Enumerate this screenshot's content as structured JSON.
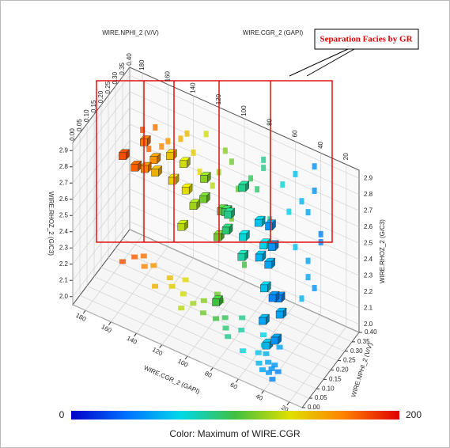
{
  "chart_data": {
    "type": "scatter3d",
    "x_label": "WIRE.CGR_2 (GAPI)",
    "y_label": "WIRE.NPHI_2 (V/V)",
    "z_label": "WIRE.RHOZ_2 (G/C3)",
    "annotation": "Separation Facies by GR",
    "xlim": [
      10,
      190
    ],
    "xticks": [
      20,
      40,
      60,
      80,
      100,
      120,
      140,
      160,
      180
    ],
    "ylim": [
      0,
      0.4
    ],
    "yticks": [
      {
        "value": 0,
        "label": "0.00"
      },
      {
        "value": 0.05,
        "label": "0.05"
      },
      {
        "value": 0.1,
        "label": "0.10"
      },
      {
        "value": 0.15,
        "label": "0.15"
      },
      {
        "value": 0.2,
        "label": "0.20"
      },
      {
        "value": 0.25,
        "label": "0.25"
      },
      {
        "value": 0.3,
        "label": "0.30"
      },
      {
        "value": 0.35,
        "label": "0.35"
      },
      {
        "value": 0.4,
        "label": "0.40"
      }
    ],
    "zlim": [
      1.95,
      2.95
    ],
    "zticks": [
      {
        "value": 2,
        "label": "2.0"
      },
      2.1,
      2.2,
      2.3,
      2.4,
      2.5,
      2.6,
      2.7,
      2.8,
      2.9
    ],
    "grid": true,
    "colorbar": {
      "lim": [
        0,
        200
      ],
      "label": "Color: Maximum of WIRE.CGR",
      "colors": [
        "#0000c8",
        "#0070ff",
        "#00d8e8",
        "#40c040",
        "#e0e000",
        "#ff8000",
        "#e00000"
      ]
    },
    "series": [
      {
        "x": [
          45,
          45,
          50,
          40,
          50,
          45,
          55,
          60,
          55,
          40,
          60,
          50,
          65,
          70,
          85,
          90,
          80,
          95,
          85,
          110,
          120,
          115,
          125,
          105,
          130,
          110,
          100,
          140,
          145,
          135,
          150,
          160,
          165,
          170,
          175,
          180
        ],
        "y": [
          0.08,
          0.1,
          0.12,
          0.1,
          0.08,
          0.12,
          0.15,
          0.14,
          0.1,
          0.06,
          0.18,
          0.2,
          0.22,
          0.12,
          0.15,
          0.18,
          0.2,
          0.22,
          0.25,
          0.2,
          0.22,
          0.25,
          0.18,
          0.28,
          0.24,
          0.3,
          0.2,
          0.25,
          0.28,
          0.3,
          0.22,
          0.3,
          0.28,
          0.32,
          0.3,
          0.26
        ],
        "z": [
          2.85,
          2.7,
          2.55,
          2.4,
          2.25,
          2.1,
          2.0,
          2.75,
          2.6,
          2.45,
          2.3,
          2.15,
          2.5,
          2.65,
          2.7,
          2.55,
          2.4,
          2.6,
          2.75,
          2.65,
          2.55,
          2.7,
          2.45,
          2.5,
          2.75,
          2.3,
          2.05,
          2.6,
          2.7,
          2.5,
          2.65,
          2.6,
          2.55,
          2.65,
          2.5,
          2.6
        ]
      }
    ]
  }
}
